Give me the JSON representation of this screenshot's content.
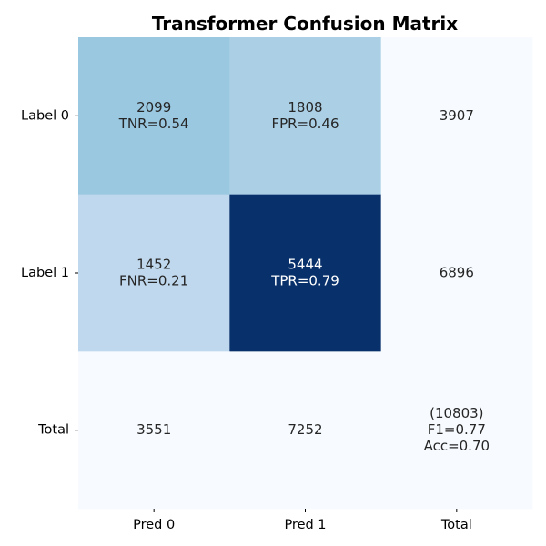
{
  "chart_data": {
    "type": "heatmap",
    "title": "Transformer Confusion Matrix",
    "row_labels": [
      "Label 0",
      "Label 1",
      "Total"
    ],
    "col_labels": [
      "Pred 0",
      "Pred 1",
      "Total"
    ],
    "colormap": "Blues",
    "grid": false,
    "matrix": [
      [
        2099,
        1808,
        3907
      ],
      [
        1452,
        5444,
        6896
      ],
      [
        3551,
        7252,
        10803
      ]
    ],
    "cells": [
      [
        {
          "lines": [
            "2099",
            "TNR=0.54"
          ],
          "fill": "#9ac8e0",
          "text_color": "#262626"
        },
        {
          "lines": [
            "1808",
            "FPR=0.46"
          ],
          "fill": "#abd0e6",
          "text_color": "#262626"
        },
        {
          "lines": [
            "3907"
          ],
          "fill": "#f7fbff",
          "text_color": "#262626"
        }
      ],
      [
        {
          "lines": [
            "1452",
            "FNR=0.21"
          ],
          "fill": "#bfd8ed",
          "text_color": "#262626"
        },
        {
          "lines": [
            "5444",
            "TPR=0.79"
          ],
          "fill": "#08306b",
          "text_color": "#ffffff"
        },
        {
          "lines": [
            "6896"
          ],
          "fill": "#f7fbff",
          "text_color": "#262626"
        }
      ],
      [
        {
          "lines": [
            "3551"
          ],
          "fill": "#f7fbff",
          "text_color": "#262626"
        },
        {
          "lines": [
            "7252"
          ],
          "fill": "#f7fbff",
          "text_color": "#262626"
        },
        {
          "lines": [
            "(10803)",
            "F1=0.77",
            "Acc=0.70"
          ],
          "fill": "#f7fbff",
          "text_color": "#262626"
        }
      ]
    ]
  }
}
